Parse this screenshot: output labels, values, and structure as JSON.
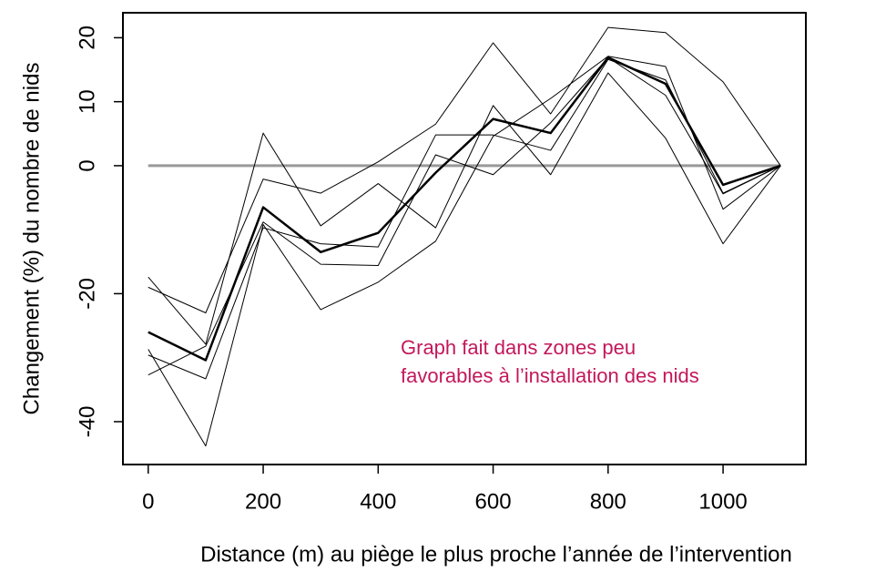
{
  "chart_data": {
    "type": "line",
    "x_label": "Distance (m) au piège le plus proche l’année de l’intervention",
    "y_label": "Changement (%) du nombre de nids",
    "annotation": [
      "Graph fait dans zones peu",
      "favorables à l’installation des nids"
    ],
    "annotation_color": "#c2185b",
    "x": [
      0,
      100,
      200,
      300,
      400,
      500,
      600,
      700,
      800,
      900,
      1000,
      1100
    ],
    "series": [
      {
        "color": "#000000",
        "line_width": 1,
        "values": [
          -19,
          -23,
          -2.1,
          -4.3,
          0.6,
          6.5,
          19.2,
          8.1,
          21.6,
          20.8,
          13.1,
          0
        ]
      },
      {
        "color": "#000000",
        "line_width": 1,
        "values": [
          -17.4,
          -27.9,
          5.1,
          -9.4,
          -2.8,
          -9.7,
          9.4,
          -1.4,
          14.5,
          4.3,
          -12.2,
          0
        ]
      },
      {
        "color": "#000000",
        "line_width": 1,
        "values": [
          -28.7,
          -43.8,
          -9.2,
          -22.5,
          -18.2,
          -11.8,
          4.6,
          10.5,
          17.1,
          15.5,
          -6.8,
          0
        ]
      },
      {
        "color": "#000000",
        "line_width": 1,
        "values": [
          -32.7,
          -28.2,
          -8.8,
          -15.4,
          -15.6,
          1.7,
          -1.4,
          6.7,
          16.9,
          11,
          -4.4,
          0
        ]
      },
      {
        "color": "#000000",
        "line_width": 1,
        "values": [
          -29.6,
          -33.3,
          -9.7,
          -12.2,
          -12.7,
          4.8,
          4.8,
          2.4,
          16.6,
          13.4,
          -4.3,
          0
        ]
      },
      {
        "color": "#000000",
        "line_width": 2.5,
        "values": [
          -26,
          -30.4,
          -6.5,
          -13.5,
          -10.5,
          -1.1,
          7.3,
          5.1,
          16.9,
          12.8,
          -3,
          0
        ]
      }
    ],
    "reference_line": {
      "value": 0,
      "color": "#999999"
    },
    "xlim": [
      -44,
      1144
    ],
    "xticks": [
      0,
      200,
      400,
      600,
      800,
      1000
    ],
    "ylim": [
      -46.7,
      23.9
    ],
    "yticks": [
      -40,
      -20,
      0,
      10,
      20
    ],
    "grid": false
  }
}
